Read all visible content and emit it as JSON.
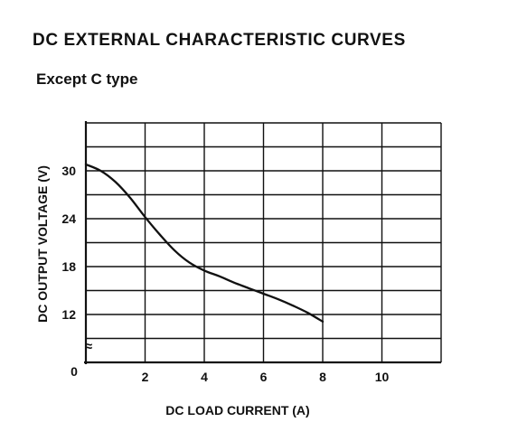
{
  "chart_data": {
    "type": "line",
    "title": "DC EXTERNAL CHARACTERISTIC CURVES",
    "subtitle": "Except C type",
    "xlabel": "DC LOAD CURRENT (A)",
    "ylabel": "DC OUTPUT VOLTAGE (V)",
    "xlim": [
      0,
      12
    ],
    "ylim": [
      6,
      36
    ],
    "x_ticks": [
      "2",
      "4",
      "6",
      "8",
      "10"
    ],
    "y_ticks": [
      "12",
      "18",
      "24",
      "30"
    ],
    "origin_label": "0",
    "axis_break_symbol": "≈",
    "grid": true,
    "series": [
      {
        "x": [
          0,
          0.5,
          1,
          1.5,
          2,
          2.5,
          3,
          3.5,
          4,
          4.5,
          5,
          5.5,
          6,
          6.5,
          7,
          7.5,
          8
        ],
        "y": [
          30.8,
          30.0,
          28.6,
          26.6,
          24.2,
          22.0,
          20.0,
          18.5,
          17.5,
          16.8,
          16.0,
          15.3,
          14.6,
          13.9,
          13.1,
          12.2,
          11.1
        ],
        "color": "#111111"
      }
    ]
  }
}
